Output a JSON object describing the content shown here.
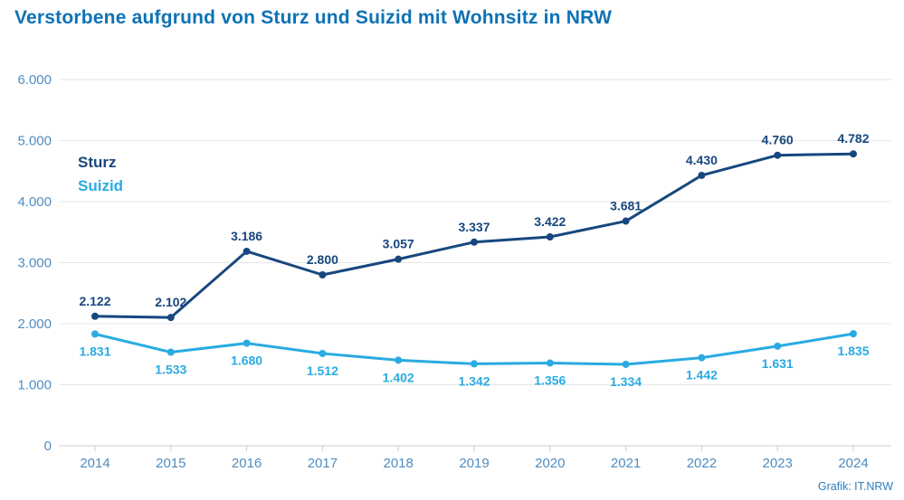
{
  "title": "Verstorbene aufgrund von Sturz und Suizid mit Wohnsitz in NRW",
  "attribution": "Grafik: IT.NRW",
  "colors": {
    "title": "#0e72b5",
    "sturz": "#17477E",
    "suizid": "#29ABE2",
    "axis_tick_label": "#4F8CC0",
    "gridline": "#e4e6e8",
    "axis_line": "#c9cdd1",
    "background": "#ffffff",
    "attribution": "#2e7ebd"
  },
  "chart_data": {
    "type": "line",
    "title": "Verstorbene aufgrund von Sturz und Suizid mit Wohnsitz in NRW",
    "categories": [
      "2014",
      "2015",
      "2016",
      "2017",
      "2018",
      "2019",
      "2020",
      "2021",
      "2022",
      "2023",
      "2024"
    ],
    "series": [
      {
        "name": "Sturz",
        "color": "#17477E",
        "values": [
          2122,
          2102,
          3186,
          2800,
          3057,
          3337,
          3422,
          3681,
          4430,
          4760,
          4782
        ],
        "labels": [
          "2.122",
          "2.102",
          "3.186",
          "2.800",
          "3.057",
          "3.337",
          "3.422",
          "3.681",
          "4.430",
          "4.760",
          "4.782"
        ],
        "label_position": "above"
      },
      {
        "name": "Suizid",
        "color": "#29ABE2",
        "values": [
          1831,
          1533,
          1680,
          1512,
          1402,
          1342,
          1356,
          1334,
          1442,
          1631,
          1835
        ],
        "labels": [
          "1.831",
          "1.533",
          "1.680",
          "1.512",
          "1.402",
          "1.342",
          "1.356",
          "1.334",
          "1.442",
          "1.631",
          "1.835"
        ],
        "label_position": "below"
      }
    ],
    "xlabel": "",
    "ylabel": "",
    "ylim": [
      0,
      6000
    ],
    "ytick_step": 1000,
    "ytick_labels": [
      "0",
      "1.000",
      "2.000",
      "3.000",
      "4.000",
      "5.000",
      "6.000"
    ],
    "grid": true,
    "legend_position": "inside-left"
  }
}
